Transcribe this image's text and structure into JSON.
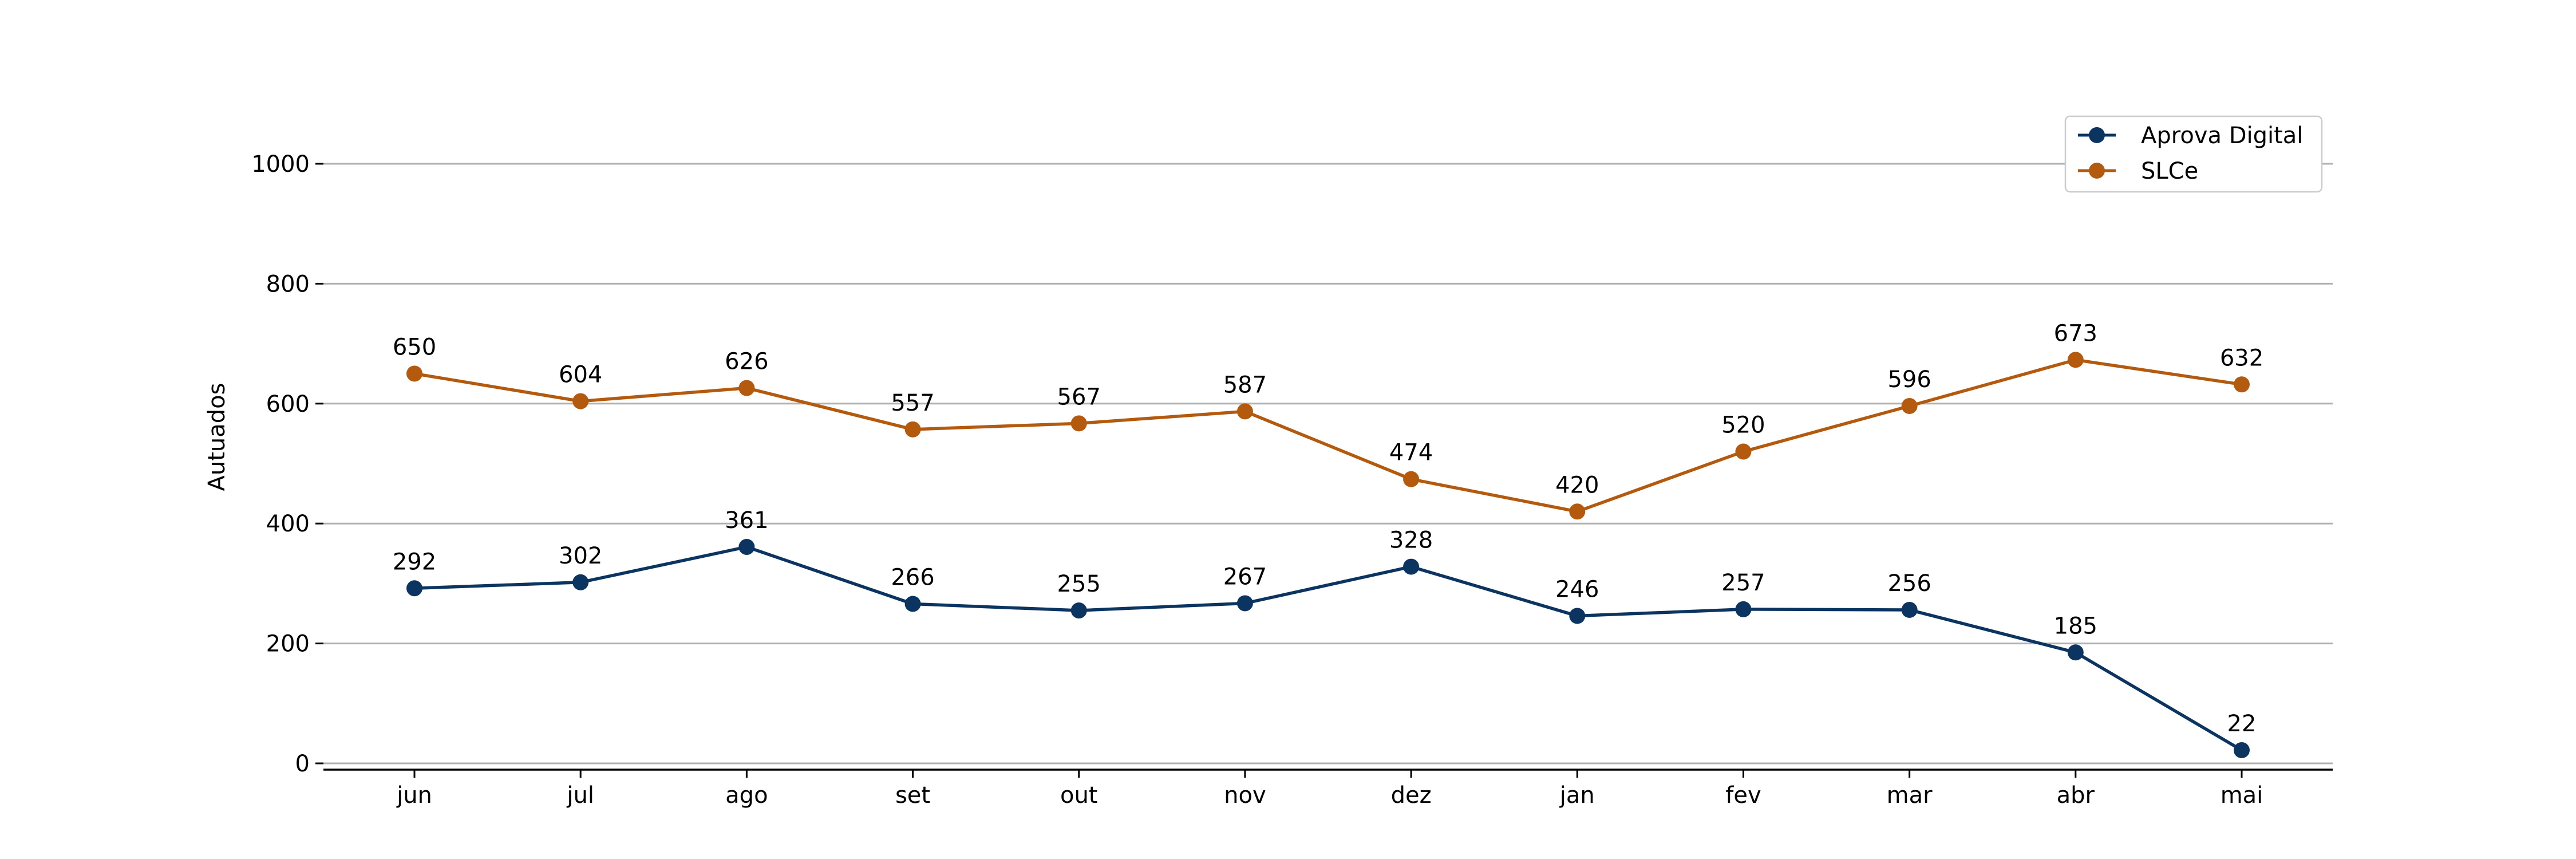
{
  "chart_data": {
    "type": "line",
    "title": "",
    "xlabel": "",
    "ylabel": "Autuados",
    "categories": [
      "jun",
      "jul",
      "ago",
      "set",
      "out",
      "nov",
      "dez",
      "jan",
      "fev",
      "mar",
      "abr",
      "mai"
    ],
    "ylim": [
      0,
      1000
    ],
    "yticks": [
      0,
      200,
      400,
      600,
      800,
      1000
    ],
    "grid": "horizontal",
    "legend_position": "top-right",
    "series": [
      {
        "name": "Aprova Digital",
        "color": "#0b3460",
        "values": [
          292,
          302,
          361,
          266,
          255,
          267,
          328,
          246,
          257,
          256,
          185,
          22
        ]
      },
      {
        "name": "SLCe",
        "color": "#b35a0e",
        "values": [
          650,
          604,
          626,
          557,
          567,
          587,
          474,
          420,
          520,
          596,
          673,
          632
        ]
      }
    ]
  }
}
